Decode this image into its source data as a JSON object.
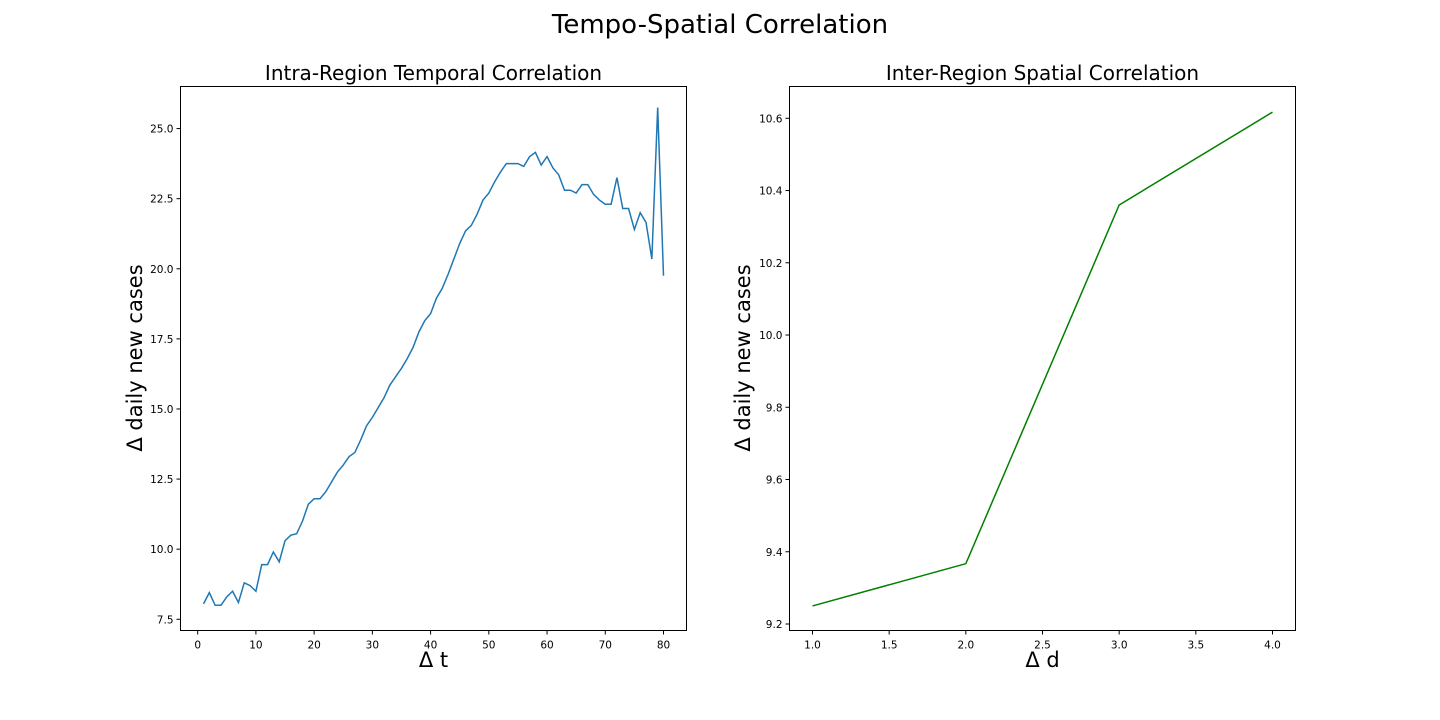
{
  "figure": {
    "suptitle": "Tempo-Spatial Correlation"
  },
  "chart_data": [
    {
      "type": "line",
      "title": "Intra-Region Temporal Correlation",
      "xlabel": "Δ t",
      "ylabel": "Δ daily new cases",
      "xlim": [
        -2.95,
        83.95
      ],
      "ylim": [
        7.1,
        26.5
      ],
      "xticks": [
        0,
        10,
        20,
        30,
        40,
        50,
        60,
        70,
        80
      ],
      "xtick_labels": [
        "0",
        "10",
        "20",
        "30",
        "40",
        "50",
        "60",
        "70",
        "80"
      ],
      "yticks": [
        7.5,
        10.0,
        12.5,
        15.0,
        17.5,
        20.0,
        22.5,
        25.0
      ],
      "ytick_labels": [
        "7.5",
        "10.0",
        "12.5",
        "15.0",
        "17.5",
        "20.0",
        "22.5",
        "25.0"
      ],
      "grid": false,
      "color": "#1f77b4",
      "x": [
        1,
        2,
        3,
        4,
        5,
        6,
        7,
        8,
        9,
        10,
        11,
        12,
        13,
        14,
        15,
        16,
        17,
        18,
        19,
        20,
        21,
        22,
        23,
        24,
        25,
        26,
        27,
        28,
        29,
        30,
        31,
        32,
        33,
        34,
        35,
        36,
        37,
        38,
        39,
        40,
        41,
        42,
        43,
        44,
        45,
        46,
        47,
        48,
        49,
        50,
        51,
        52,
        53,
        54,
        55,
        56,
        57,
        58,
        59,
        60,
        61,
        62,
        63,
        64,
        65,
        66,
        67,
        68,
        69,
        70,
        71,
        72,
        73,
        74,
        75,
        76,
        77,
        78,
        79,
        80
      ],
      "values": [
        8.05,
        8.45,
        8.0,
        8.0,
        8.3,
        8.5,
        8.1,
        8.8,
        8.7,
        8.5,
        9.45,
        9.45,
        9.9,
        9.55,
        10.3,
        10.5,
        10.55,
        11.0,
        11.6,
        11.8,
        11.8,
        12.05,
        12.4,
        12.75,
        13.0,
        13.3,
        13.45,
        13.9,
        14.4,
        14.7,
        15.05,
        15.4,
        15.85,
        16.15,
        16.45,
        16.8,
        17.2,
        17.75,
        18.15,
        18.4,
        18.95,
        19.3,
        19.8,
        20.35,
        20.9,
        21.35,
        21.55,
        21.95,
        22.45,
        22.7,
        23.1,
        23.45,
        23.75,
        23.75,
        23.75,
        23.65,
        24.0,
        24.15,
        23.7,
        24.0,
        23.6,
        23.35,
        22.8,
        22.8,
        22.7,
        23.0,
        23.0,
        22.65,
        22.45,
        22.3,
        22.3,
        23.25,
        22.15,
        22.15,
        21.4,
        22.0,
        21.65,
        20.35,
        25.75,
        19.75
      ]
    },
    {
      "type": "line",
      "title": "Inter-Region Spatial Correlation",
      "xlabel": "Δ d",
      "ylabel": "Δ daily new cases",
      "xlim": [
        0.85,
        4.15
      ],
      "ylim": [
        9.182,
        10.688
      ],
      "xticks": [
        1.0,
        1.5,
        2.0,
        2.5,
        3.0,
        3.5,
        4.0
      ],
      "xtick_labels": [
        "1.0",
        "1.5",
        "2.0",
        "2.5",
        "3.0",
        "3.5",
        "4.0"
      ],
      "yticks": [
        9.2,
        9.4,
        9.6,
        9.8,
        10.0,
        10.2,
        10.4,
        10.6
      ],
      "ytick_labels": [
        "9.2",
        "9.4",
        "9.6",
        "9.8",
        "10.0",
        "10.2",
        "10.4",
        "10.6"
      ],
      "grid": false,
      "color": "#008000",
      "x": [
        1.0,
        2.0,
        3.0,
        4.0
      ],
      "values": [
        9.25,
        9.367,
        10.36,
        10.617
      ]
    }
  ]
}
